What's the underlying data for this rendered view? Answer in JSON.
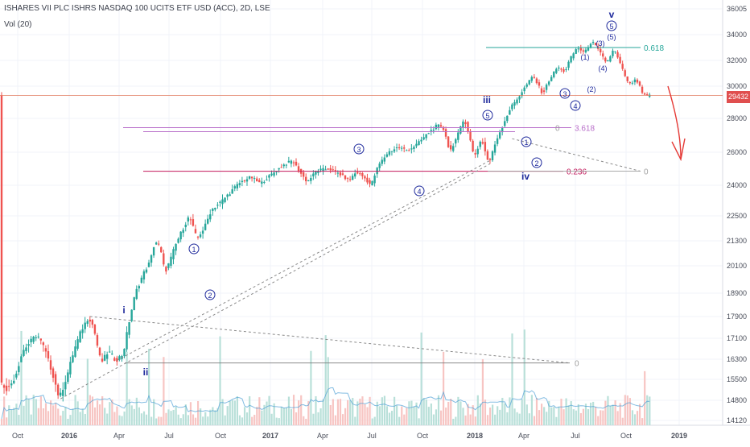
{
  "header": {
    "title": "ISHARES VII PLC ISHRS NASDAQ 100 UCITS ETF USD (ACC), 2D, LSE",
    "volume_label": "Vol (20)"
  },
  "last_price_badge": "29432",
  "chart_data": {
    "type": "candlestick",
    "timeframe": "2D",
    "y_axis": {
      "ticks": [
        "36005",
        "34000",
        "32000",
        "30000",
        "28000",
        "26000",
        "24000",
        "22500",
        "21300",
        "20100",
        "18900",
        "17900",
        "17100",
        "16300",
        "15500",
        "14800",
        "14120"
      ],
      "range": [
        14120,
        36005
      ]
    },
    "x_axis": {
      "ticks": [
        "Oct",
        "2016",
        "Apr",
        "Jul",
        "Oct",
        "2017",
        "Apr",
        "Jul",
        "Oct",
        "2018",
        "Apr",
        "Jul",
        "Oct",
        "2019"
      ]
    },
    "close_path": [
      {
        "t": 0,
        "y": 15400
      },
      {
        "t": 3,
        "y": 15150
      },
      {
        "t": 6,
        "y": 15600
      },
      {
        "t": 9,
        "y": 16600
      },
      {
        "t": 12,
        "y": 16950
      },
      {
        "t": 15,
        "y": 17250
      },
      {
        "t": 18,
        "y": 16700
      },
      {
        "t": 21,
        "y": 15800
      },
      {
        "t": 24,
        "y": 14850
      },
      {
        "t": 27,
        "y": 15600
      },
      {
        "t": 30,
        "y": 16650
      },
      {
        "t": 33,
        "y": 17400
      },
      {
        "t": 36,
        "y": 17900
      },
      {
        "t": 38,
        "y": 17500
      },
      {
        "t": 41,
        "y": 16150
      },
      {
        "t": 44,
        "y": 16600
      },
      {
        "t": 47,
        "y": 16250
      },
      {
        "t": 50,
        "y": 16500
      },
      {
        "t": 52,
        "y": 17500
      },
      {
        "t": 55,
        "y": 18900
      },
      {
        "t": 58,
        "y": 19700
      },
      {
        "t": 61,
        "y": 20300
      },
      {
        "t": 63,
        "y": 21300
      },
      {
        "t": 65,
        "y": 21000
      },
      {
        "t": 67,
        "y": 19800
      },
      {
        "t": 69,
        "y": 20300
      },
      {
        "t": 71,
        "y": 21000
      },
      {
        "t": 74,
        "y": 21800
      },
      {
        "t": 77,
        "y": 22500
      },
      {
        "t": 80,
        "y": 21400
      },
      {
        "t": 83,
        "y": 21900
      },
      {
        "t": 86,
        "y": 22800
      },
      {
        "t": 90,
        "y": 23200
      },
      {
        "t": 94,
        "y": 23700
      },
      {
        "t": 98,
        "y": 24200
      },
      {
        "t": 102,
        "y": 24500
      },
      {
        "t": 106,
        "y": 24100
      },
      {
        "t": 110,
        "y": 24600
      },
      {
        "t": 115,
        "y": 25200
      },
      {
        "t": 119,
        "y": 25500
      },
      {
        "t": 122,
        "y": 24800
      },
      {
        "t": 125,
        "y": 24200
      },
      {
        "t": 129,
        "y": 24900
      },
      {
        "t": 134,
        "y": 25000
      },
      {
        "t": 138,
        "y": 24700
      },
      {
        "t": 142,
        "y": 24300
      },
      {
        "t": 145,
        "y": 24800
      },
      {
        "t": 148,
        "y": 24500
      },
      {
        "t": 151,
        "y": 24000
      },
      {
        "t": 154,
        "y": 25200
      },
      {
        "t": 158,
        "y": 26000
      },
      {
        "t": 162,
        "y": 26300
      },
      {
        "t": 166,
        "y": 26100
      },
      {
        "t": 170,
        "y": 26500
      },
      {
        "t": 174,
        "y": 27100
      },
      {
        "t": 178,
        "y": 27600
      },
      {
        "t": 181,
        "y": 27300
      },
      {
        "t": 183,
        "y": 26000
      },
      {
        "t": 186,
        "y": 26900
      },
      {
        "t": 189,
        "y": 28000
      },
      {
        "t": 191,
        "y": 27000
      },
      {
        "t": 193,
        "y": 25700
      },
      {
        "t": 196,
        "y": 26800
      },
      {
        "t": 199,
        "y": 25300
      },
      {
        "t": 202,
        "y": 26700
      },
      {
        "t": 205,
        "y": 27700
      },
      {
        "t": 208,
        "y": 28700
      },
      {
        "t": 211,
        "y": 29300
      },
      {
        "t": 214,
        "y": 30000
      },
      {
        "t": 217,
        "y": 30800
      },
      {
        "t": 219,
        "y": 30100
      },
      {
        "t": 221,
        "y": 29500
      },
      {
        "t": 224,
        "y": 30600
      },
      {
        "t": 227,
        "y": 31500
      },
      {
        "t": 230,
        "y": 31100
      },
      {
        "t": 232,
        "y": 32100
      },
      {
        "t": 235,
        "y": 33000
      },
      {
        "t": 238,
        "y": 32600
      },
      {
        "t": 241,
        "y": 33500
      },
      {
        "t": 244,
        "y": 32700
      },
      {
        "t": 247,
        "y": 31800
      },
      {
        "t": 250,
        "y": 32900
      },
      {
        "t": 253,
        "y": 31500
      },
      {
        "t": 256,
        "y": 30100
      },
      {
        "t": 259,
        "y": 30500
      },
      {
        "t": 262,
        "y": 29400
      },
      {
        "t": 264,
        "y": 29432
      }
    ],
    "horizontal_levels": [
      {
        "label": "0.618",
        "price": 33000,
        "color": "#26a69a"
      },
      {
        "label": "3.618",
        "price": 27450,
        "color": "#b86ec9"
      },
      {
        "label": "0.236",
        "price": 24850,
        "color": "#c2185b"
      },
      {
        "label": "",
        "price": 29432,
        "color": "#e07a5f"
      }
    ],
    "fib_zero_labels": [
      "0",
      "0",
      "0"
    ],
    "wave_labels": {
      "primary": [
        "i",
        "ii",
        "iii",
        "iv",
        "v"
      ],
      "circled": [
        "1",
        "2",
        "3",
        "4",
        "5",
        "1",
        "2",
        "3",
        "4",
        "5"
      ],
      "minor": [
        "(1)",
        "(2)",
        "(3)",
        "(4)",
        "(5)"
      ]
    },
    "colors": {
      "up": "#26a69a",
      "down": "#ef5350",
      "vol_up": "#b9e0d9",
      "vol_down": "#f7c5c3",
      "vol_ma": "#4f9fd6",
      "wave_label": "#1f2a9c",
      "trend_dash": "#8a8a8a",
      "grid": "#f0f3fa",
      "forecast_arrow": "#e53935"
    }
  }
}
